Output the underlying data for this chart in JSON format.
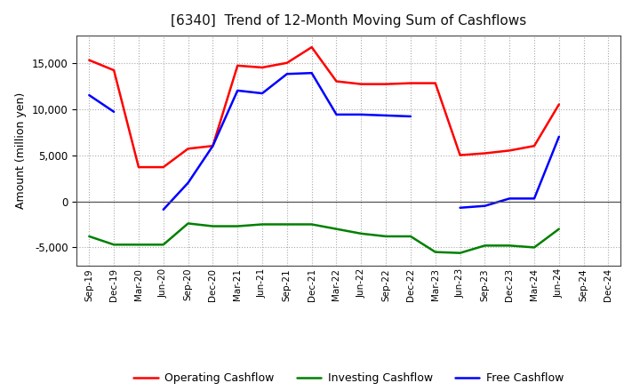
{
  "title": "[6340]  Trend of 12-Month Moving Sum of Cashflows",
  "ylabel": "Amount (million yen)",
  "x_labels": [
    "Sep-19",
    "Dec-19",
    "Mar-20",
    "Jun-20",
    "Sep-20",
    "Dec-20",
    "Mar-21",
    "Jun-21",
    "Sep-21",
    "Dec-21",
    "Mar-22",
    "Jun-22",
    "Sep-22",
    "Dec-22",
    "Mar-23",
    "Jun-23",
    "Sep-23",
    "Dec-23",
    "Mar-24",
    "Jun-24",
    "Sep-24",
    "Dec-24"
  ],
  "operating_cashflow": [
    15300,
    14200,
    3700,
    3700,
    5700,
    6000,
    14700,
    14500,
    15000,
    16700,
    13000,
    12700,
    12700,
    12800,
    12800,
    5000,
    5200,
    5500,
    6000,
    10500,
    null,
    null
  ],
  "investing_cashflow": [
    -3800,
    -4700,
    -4700,
    -4700,
    -2400,
    -2700,
    -2700,
    -2500,
    -2500,
    -2500,
    -3000,
    -3500,
    -3800,
    -3800,
    -5500,
    -5600,
    -4800,
    -4800,
    -5000,
    -3000,
    null,
    null
  ],
  "free_cashflow": [
    11500,
    9700,
    null,
    -900,
    2000,
    6000,
    12000,
    11700,
    13800,
    13900,
    9400,
    9400,
    9300,
    9200,
    null,
    -700,
    -500,
    300,
    300,
    7000,
    null,
    null
  ],
  "operating_color": "#FF0000",
  "investing_color": "#008000",
  "free_color": "#0000FF",
  "ylim": [
    -7000,
    18000
  ],
  "yticks": [
    -5000,
    0,
    5000,
    10000,
    15000
  ],
  "background_color": "#FFFFFF",
  "grid_color": "#AAAAAA",
  "legend_labels": [
    "Operating Cashflow",
    "Investing Cashflow",
    "Free Cashflow"
  ]
}
